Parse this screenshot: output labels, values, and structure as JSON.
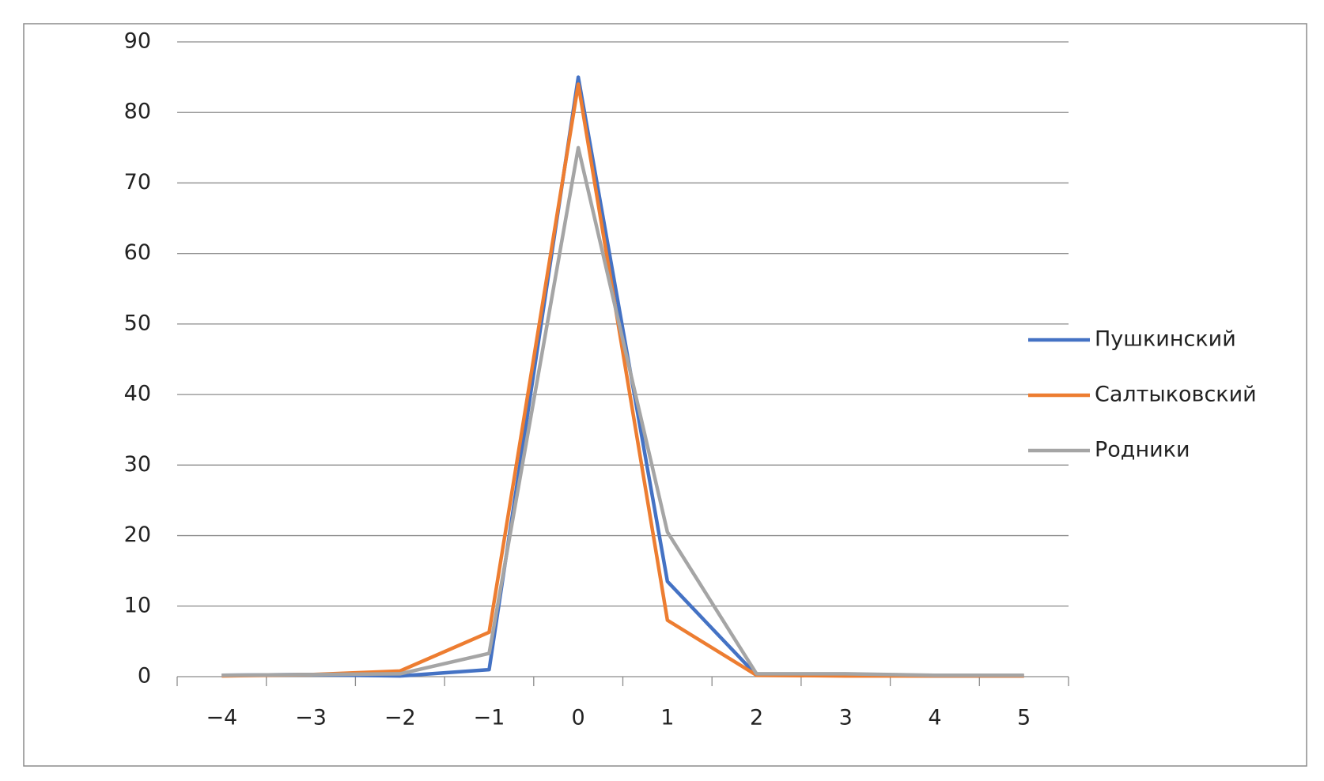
{
  "chart_data": {
    "type": "line",
    "categories": [
      "−4",
      "−3",
      "−2",
      "−1",
      "0",
      "1",
      "2",
      "3",
      "4",
      "5"
    ],
    "series": [
      {
        "name": "Пушкинский",
        "color": "#4472c4",
        "values": [
          0.2,
          0.3,
          0.1,
          1,
          85,
          13.5,
          0.2,
          0.2,
          0.1,
          0.1
        ]
      },
      {
        "name": "Салтыковский",
        "color": "#ed7d31",
        "values": [
          0.1,
          0.3,
          0.8,
          6.3,
          84,
          8,
          0.2,
          0.1,
          0.1,
          0.1
        ]
      },
      {
        "name": "Родники",
        "color": "#a5a5a5",
        "values": [
          0.2,
          0.3,
          0.4,
          3.3,
          75,
          20.5,
          0.4,
          0.4,
          0.2,
          0.2
        ]
      }
    ],
    "ylim": [
      0,
      90
    ],
    "yticks": [
      0,
      10,
      20,
      30,
      40,
      50,
      60,
      70,
      80,
      90
    ],
    "grid": true,
    "legend": "right"
  }
}
